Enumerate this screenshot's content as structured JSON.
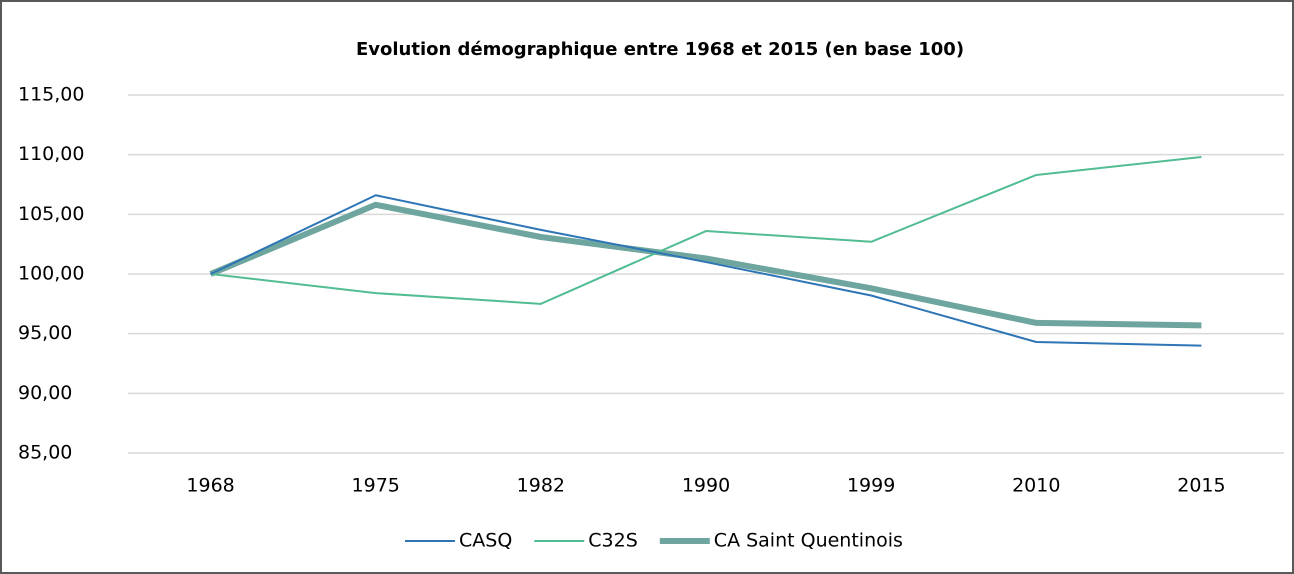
{
  "chart_data": {
    "type": "line",
    "title": "Evolution démographique entre 1968 et 2015 (en base 100)",
    "categories": [
      "1968",
      "1975",
      "1982",
      "1990",
      "1999",
      "2010",
      "2015"
    ],
    "series": [
      {
        "name": "CASQ",
        "color": "#2e75b6",
        "width": 2,
        "values": [
          100,
          106.6,
          103.7,
          101.0,
          98.2,
          94.3,
          94.0
        ]
      },
      {
        "name": "C32S",
        "color": "#52bc93",
        "width": 2,
        "values": [
          100,
          98.4,
          97.5,
          103.6,
          102.7,
          108.3,
          109.8
        ]
      },
      {
        "name": "CA Saint Quentinois",
        "color": "#6ea69f",
        "width": 6,
        "values": [
          100,
          105.8,
          103.1,
          101.3,
          98.8,
          95.9,
          95.7
        ]
      }
    ],
    "ylim": [
      85,
      115
    ],
    "yticks": [
      {
        "value": 85,
        "label": "85,00"
      },
      {
        "value": 90,
        "label": "90,00"
      },
      {
        "value": 95,
        "label": "95,00"
      },
      {
        "value": 100,
        "label": "100,00"
      },
      {
        "value": 105,
        "label": "105,00"
      },
      {
        "value": 110,
        "label": "110,00"
      },
      {
        "value": 115,
        "label": "115,00"
      }
    ],
    "grid": true,
    "legend": "bottom"
  }
}
